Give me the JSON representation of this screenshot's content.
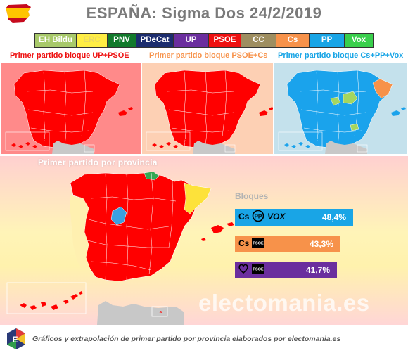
{
  "header": {
    "title": "ESPAÑA: Sigma Dos 24/2/2019"
  },
  "legend": [
    {
      "label": "EH Bildu",
      "bg": "#a8c96a",
      "fg": "#ffffff",
      "w": 59
    },
    {
      "label": "ERC",
      "bg": "#ffee44",
      "fg": "#e8d766",
      "w": 44
    },
    {
      "label": "PNV",
      "bg": "#127a2c",
      "fg": "#ffffff",
      "w": 41
    },
    {
      "label": "PDeCat",
      "bg": "#1c2d6e",
      "fg": "#ffffff",
      "w": 53
    },
    {
      "label": "UP",
      "bg": "#6b2e9e",
      "fg": "#ffffff",
      "w": 50
    },
    {
      "label": "PSOE",
      "bg": "#ee1111",
      "fg": "#ffffff",
      "w": 46
    },
    {
      "label": "CC",
      "bg": "#9e8e60",
      "fg": "#ffffff",
      "w": 50
    },
    {
      "label": "Cs",
      "bg": "#f7924a",
      "fg": "#ffffff",
      "w": 47
    },
    {
      "label": "PP",
      "bg": "#19a5e6",
      "fg": "#ffffff",
      "w": 50
    },
    {
      "label": "Vox",
      "bg": "#39cf4c",
      "fg": "#ffffff",
      "w": 40
    }
  ],
  "blocks": [
    {
      "heading": "Primer partido bloque UP+PSOE",
      "color": "#ee1111",
      "bg": "#ff8a8a",
      "map": "#ff0000"
    },
    {
      "heading": "Primer partido bloque PSOE+Cs",
      "color": "#f7924a",
      "bg": "#fdd0b4",
      "map": "#ff0000"
    },
    {
      "heading": "Primer partido bloque Cs+PP+Vox",
      "color": "#19a5e6",
      "bg": "#c4e1ec",
      "map": "#1aa3ec"
    }
  ],
  "main": {
    "title": "Primer partido por provincia",
    "watermark": "electomania.es",
    "bloques_title": "Bloques"
  },
  "bloques": [
    {
      "logos": [
        "Cs",
        "PP",
        "VOX"
      ],
      "value": "48,4%",
      "color": "#19a5e6"
    },
    {
      "logos": [
        "Cs",
        "PSOE"
      ],
      "value": "43,3%",
      "color": "#f7924a"
    },
    {
      "logos": [
        "UP",
        "PSOE"
      ],
      "value": "41,7%",
      "color": "#6b2e9e"
    }
  ],
  "footer": {
    "text": "Gráficos y extrapolación de primer partido por provincia elaborados por electomania.es"
  }
}
